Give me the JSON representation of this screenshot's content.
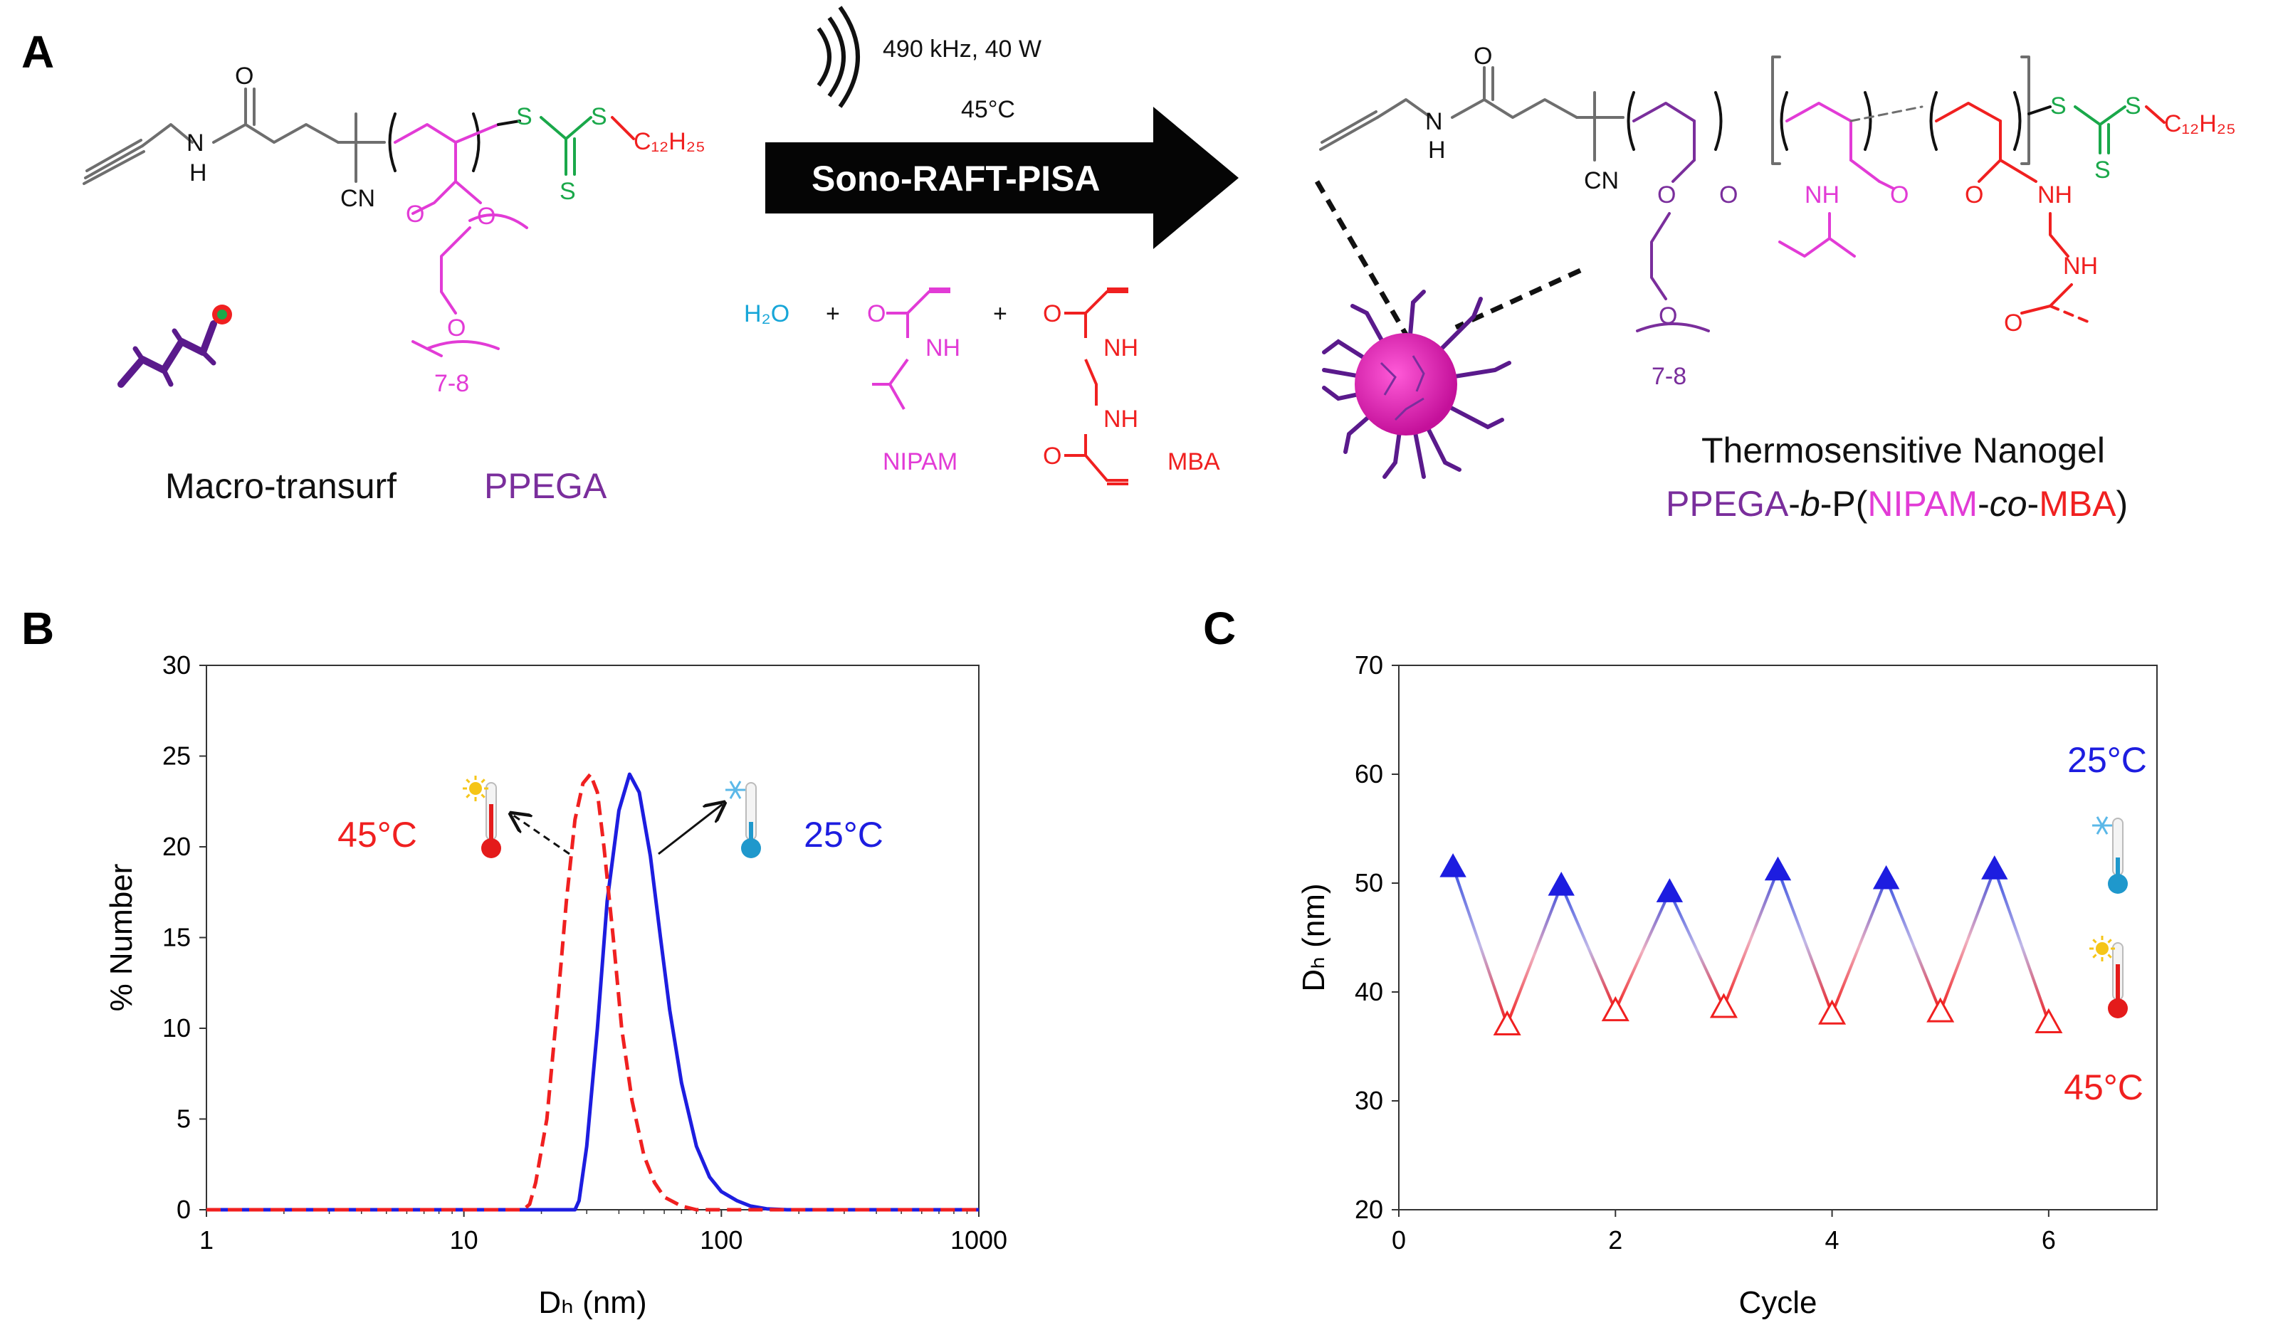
{
  "colors": {
    "purple": "#7a2e9c",
    "pink": "#e23bd6",
    "red": "#f02020",
    "green": "#1aa84a",
    "blue": "#1d1de0",
    "cyan": "#17a6d8",
    "gray": "#6e6e6e",
    "black": "#111111"
  },
  "panel_a": {
    "label": "A",
    "conditions": {
      "frequency": "490 kHz, 40 W",
      "temperature": "45°C",
      "arrow_label": "Sono-RAFT-PISA"
    },
    "reagents": {
      "water": "H₂O",
      "plus": "+",
      "nipam": "NIPAM",
      "mba": "MBA"
    },
    "chem": {
      "O": "O",
      "NH": "NH",
      "H": "H",
      "N": "N",
      "CN": "CN",
      "S": "S",
      "c12": "C₁₂H₂₅",
      "repeat": "7-8"
    },
    "left_caption": {
      "prefix": "Macro-transurf",
      "polymer": "PPEGA"
    },
    "right_caption": {
      "title": "Thermosensitive Nanogel",
      "p1": "PPEGA",
      "p2": "-",
      "p3": "b",
      "p4": "-P(",
      "p5": "NIPAM",
      "p6": "-",
      "p7": "co",
      "p8": "-",
      "p9": "MBA",
      "p10": ")"
    }
  },
  "chart_data": [
    {
      "panel": "B",
      "type": "line",
      "xscale": "log",
      "xlabel": "Dₕ (nm)",
      "ylabel": "% Number",
      "xlim": [
        1,
        1000
      ],
      "ylim": [
        0,
        30
      ],
      "xticks": [
        1,
        10,
        100,
        1000
      ],
      "yticks": [
        0,
        5,
        10,
        15,
        20,
        25,
        30
      ],
      "series": [
        {
          "name": "25°C",
          "color": "#1d1de0",
          "dash": "solid",
          "x": [
            1,
            20,
            27,
            28,
            30,
            33,
            36,
            40,
            44,
            48,
            53,
            58,
            63,
            70,
            80,
            90,
            100,
            115,
            130,
            150,
            180,
            1000
          ],
          "y": [
            0,
            0,
            0,
            0.5,
            3.5,
            10,
            17,
            22,
            24,
            23,
            19.5,
            15,
            11,
            7,
            3.5,
            1.8,
            1.0,
            0.5,
            0.2,
            0.05,
            0,
            0
          ]
        },
        {
          "name": "45°C",
          "color": "#f02020",
          "dash": "dashed",
          "x": [
            1,
            17,
            18,
            19,
            21,
            23,
            25,
            27,
            29,
            31,
            33,
            35,
            38,
            41,
            45,
            50,
            55,
            60,
            70,
            80,
            1000
          ],
          "y": [
            0,
            0,
            0.3,
            1.5,
            5,
            11,
            17,
            21.5,
            23.5,
            24,
            23,
            20,
            15,
            10,
            6,
            3,
            1.5,
            0.7,
            0.2,
            0,
            0
          ]
        }
      ],
      "annotations": [
        "45°C",
        "25°C"
      ]
    },
    {
      "panel": "C",
      "type": "line",
      "xlabel": "Cycle",
      "ylabel": "Dₕ (nm)",
      "xlim": [
        0,
        7
      ],
      "ylim": [
        20,
        70
      ],
      "xticks": [
        0,
        2,
        4,
        6
      ],
      "yticks": [
        20,
        30,
        40,
        50,
        60,
        70
      ],
      "series": [
        {
          "name": "25°C",
          "color": "#1d1de0",
          "marker": "filled-triangle",
          "x": [
            0.5,
            1.5,
            2.5,
            3.5,
            4.5,
            5.5
          ],
          "y": [
            51.5,
            49.8,
            49.2,
            51.2,
            50.4,
            51.3
          ]
        },
        {
          "name": "45°C",
          "color": "#f02020",
          "marker": "open-triangle",
          "x": [
            1,
            2,
            3,
            4,
            5,
            6
          ],
          "y": [
            37,
            38.3,
            38.6,
            38,
            38.2,
            37.2
          ]
        }
      ],
      "annotations": [
        "25°C",
        "45°C"
      ]
    }
  ]
}
